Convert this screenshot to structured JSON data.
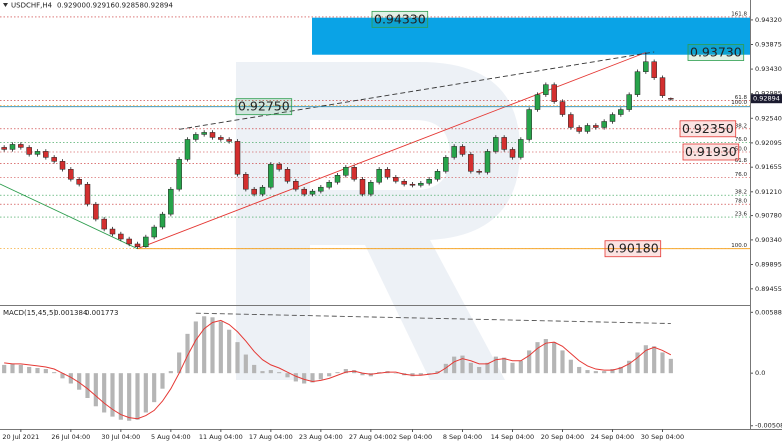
{
  "chart_data": [
    {
      "type": "candlestick",
      "symbol": "USDCHF,H4",
      "header_values": [
        "0.92900",
        "0.92916",
        "0.92858",
        "0.92894"
      ],
      "up_color": "#27a34a",
      "down_color": "#d32f2f",
      "xlim": [
        -0.5,
        89.5
      ],
      "ylim": [
        0.8918,
        0.9468
      ],
      "yticks": [
        {
          "value": 0.9432,
          "label": "0.94320"
        },
        0.93875,
        {
          "value": 0.9343,
          "label": "0.93430"
        },
        0.92985,
        {
          "value": 0.9254,
          "label": "0.92540"
        },
        0.92095,
        0.91655,
        {
          "value": 0.9121,
          "label": "0.91210"
        },
        {
          "value": 0.9078,
          "label": "0.90780"
        },
        {
          "value": 0.9034,
          "label": "0.90340"
        },
        0.89895,
        0.89455
      ],
      "ohlc": [
        [
          0.92013,
          0.92053,
          0.91937,
          0.91977
        ],
        [
          0.91977,
          0.92107,
          0.91937,
          0.92067
        ],
        [
          0.92067,
          0.92107,
          0.91973,
          0.92013
        ],
        [
          0.92013,
          0.92053,
          0.91847,
          0.91887
        ],
        [
          0.91887,
          0.91981,
          0.91847,
          0.91941
        ],
        [
          0.91941,
          0.91981,
          0.91793,
          0.91833
        ],
        [
          0.91833,
          0.91873,
          0.91721,
          0.91761
        ],
        [
          0.91761,
          0.91801,
          0.91577,
          0.91617
        ],
        [
          0.91617,
          0.91657,
          0.91397,
          0.91437
        ],
        [
          0.91437,
          0.91477,
          0.91307,
          0.91347
        ],
        [
          0.91347,
          0.91387,
          0.90946,
          0.90986
        ],
        [
          0.90986,
          0.91026,
          0.90676,
          0.90716
        ],
        [
          0.90716,
          0.90756,
          0.90496,
          0.90536
        ],
        [
          0.90536,
          0.90576,
          0.90406,
          0.90446
        ],
        [
          0.90446,
          0.90486,
          0.90316,
          0.90356
        ],
        [
          0.90356,
          0.90396,
          0.90226,
          0.90266
        ],
        [
          0.90266,
          0.90306,
          0.9018,
          0.90216
        ],
        [
          0.90216,
          0.90432,
          0.90196,
          0.90392
        ],
        [
          0.90392,
          0.90612,
          0.90352,
          0.90572
        ],
        [
          0.90572,
          0.90846,
          0.90532,
          0.90806
        ],
        [
          0.90806,
          0.91297,
          0.90766,
          0.91257
        ],
        [
          0.91257,
          0.91837,
          0.91217,
          0.91797
        ],
        [
          0.91797,
          0.92197,
          0.91757,
          0.92157
        ],
        [
          0.92157,
          0.92288,
          0.92117,
          0.92248
        ],
        [
          0.92248,
          0.92324,
          0.92208,
          0.92284
        ],
        [
          0.92284,
          0.92324,
          0.92154,
          0.92194
        ],
        [
          0.92194,
          0.92234,
          0.92117,
          0.92157
        ],
        [
          0.92157,
          0.92197,
          0.92082,
          0.92122
        ],
        [
          0.92122,
          0.92162,
          0.91487,
          0.91527
        ],
        [
          0.91527,
          0.91567,
          0.91217,
          0.91257
        ],
        [
          0.91257,
          0.91297,
          0.91127,
          0.91167
        ],
        [
          0.91167,
          0.91333,
          0.91127,
          0.91293
        ],
        [
          0.91293,
          0.91747,
          0.91253,
          0.91707
        ],
        [
          0.91707,
          0.91747,
          0.91577,
          0.91617
        ],
        [
          0.91617,
          0.91657,
          0.91361,
          0.91401
        ],
        [
          0.91401,
          0.91441,
          0.91217,
          0.91257
        ],
        [
          0.91257,
          0.91297,
          0.91127,
          0.91167
        ],
        [
          0.91167,
          0.91261,
          0.91127,
          0.91221
        ],
        [
          0.91221,
          0.91333,
          0.91181,
          0.91293
        ],
        [
          0.91293,
          0.91423,
          0.91253,
          0.91383
        ],
        [
          0.91383,
          0.91549,
          0.91343,
          0.91509
        ],
        [
          0.91509,
          0.91693,
          0.91469,
          0.91653
        ],
        [
          0.91653,
          0.91693,
          0.91397,
          0.91437
        ],
        [
          0.91437,
          0.91477,
          0.91127,
          0.91167
        ],
        [
          0.91167,
          0.91423,
          0.91127,
          0.91383
        ],
        [
          0.91383,
          0.91657,
          0.91343,
          0.91617
        ],
        [
          0.91617,
          0.91657,
          0.91433,
          0.91473
        ],
        [
          0.91473,
          0.91513,
          0.91361,
          0.91401
        ],
        [
          0.91401,
          0.91441,
          0.91307,
          0.91347
        ],
        [
          0.91347,
          0.91387,
          0.91289,
          0.91329
        ],
        [
          0.91329,
          0.91405,
          0.91289,
          0.91365
        ],
        [
          0.91365,
          0.91477,
          0.91325,
          0.91437
        ],
        [
          0.91437,
          0.91621,
          0.91397,
          0.91581
        ],
        [
          0.91581,
          0.91873,
          0.91541,
          0.91833
        ],
        [
          0.91833,
          0.92071,
          0.91793,
          0.92031
        ],
        [
          0.92031,
          0.92071,
          0.91847,
          0.91887
        ],
        [
          0.91887,
          0.91927,
          0.91541,
          0.91581
        ],
        [
          0.91581,
          0.91621,
          0.91523,
          0.91563
        ],
        [
          0.91563,
          0.91981,
          0.91523,
          0.91941
        ],
        [
          0.91941,
          0.92234,
          0.91901,
          0.92194
        ],
        [
          0.92194,
          0.92234,
          0.91937,
          0.91977
        ],
        [
          0.91977,
          0.92017,
          0.91793,
          0.91833
        ],
        [
          0.91833,
          0.92197,
          0.91793,
          0.92157
        ],
        [
          0.92157,
          0.92738,
          0.92117,
          0.92698
        ],
        [
          0.92698,
          0.93008,
          0.92658,
          0.92968
        ],
        [
          0.92968,
          0.93188,
          0.92928,
          0.93148
        ],
        [
          0.93148,
          0.93188,
          0.92802,
          0.92842
        ],
        [
          0.92842,
          0.92882,
          0.92568,
          0.92608
        ],
        [
          0.92608,
          0.92648,
          0.92334,
          0.92374
        ],
        [
          0.92374,
          0.92414,
          0.92262,
          0.92302
        ],
        [
          0.92302,
          0.9245,
          0.92262,
          0.9241
        ],
        [
          0.9241,
          0.9245,
          0.92334,
          0.92374
        ],
        [
          0.92374,
          0.92522,
          0.92334,
          0.92482
        ],
        [
          0.92482,
          0.92648,
          0.92442,
          0.92608
        ],
        [
          0.92608,
          0.92738,
          0.92568,
          0.92698
        ],
        [
          0.92698,
          0.93008,
          0.92658,
          0.92968
        ],
        [
          0.92968,
          0.93423,
          0.92928,
          0.93383
        ],
        [
          0.93383,
          0.9373,
          0.93343,
          0.93563
        ],
        [
          0.93563,
          0.93603,
          0.93235,
          0.93275
        ],
        [
          0.93275,
          0.93315,
          0.9291,
          0.9295
        ],
        [
          0.929,
          0.92916,
          0.92858,
          0.92894
        ]
      ],
      "zone": {
        "from": 0.9369,
        "to": 0.9436,
        "color": "#0aa3e6"
      },
      "levels": [
        {
          "label": "161.8",
          "value": 0.94374,
          "color": "#c62828"
        },
        {
          "label": "61.8",
          "value": 0.9286,
          "color": "#c62828"
        },
        {
          "label": "100.0",
          "value": 0.9277,
          "color": "#f39c12"
        },
        {
          "label": "38.2",
          "value": 0.9235,
          "color": "#c62828"
        },
        {
          "label": "76.0",
          "value": 0.92103,
          "color": "#2e9e4f"
        },
        {
          "label": "50.0",
          "value": 0.9193,
          "color": "#c62828"
        },
        {
          "label": "61.8",
          "value": 0.91725,
          "color": "#c62828"
        },
        {
          "label": "76.0",
          "value": 0.91473,
          "color": "#c62828"
        },
        {
          "label": "38.2",
          "value": 0.91149,
          "color": "#2e9e4f"
        },
        {
          "label": "78.0",
          "value": 0.90986,
          "color": "#c62828"
        },
        {
          "label": "23.6",
          "value": 0.90752,
          "color": "#2e9e4f"
        },
        {
          "label": "100.0",
          "value": 0.9018,
          "color": "#f39c12"
        }
      ],
      "trendlines": [
        {
          "from": [
            16,
            0.9018
          ],
          "to": [
            77,
            0.9373
          ],
          "color": "#e53935",
          "dash": false
        },
        {
          "from": [
            21,
            0.9234
          ],
          "to": [
            78,
            0.9374
          ],
          "color": "#333333",
          "dash": true
        },
        {
          "from": [
            -0.5,
            0.9135
          ],
          "to": [
            16,
            0.9018
          ],
          "color": "#2e9e4f",
          "dash": false
        },
        {
          "from": [
            16,
            0.9018
          ],
          "to": [
            89.5,
            0.9018
          ],
          "color": "#f39c12",
          "dash": false
        },
        {
          "from": [
            -0.5,
            0.9275
          ],
          "to": [
            89.5,
            0.9275
          ],
          "color": "#2a8ab0",
          "dash": false
        }
      ],
      "annotations": [
        {
          "text": "0.94330",
          "value": 0.9433,
          "color": "#2e9e4f"
        },
        {
          "text": "0.93730",
          "value": 0.9373,
          "color": "#2e9e4f"
        },
        {
          "text": "0.92750",
          "value": 0.9275,
          "color": "#2e9e4f"
        },
        {
          "text": "0.92350",
          "value": 0.9235,
          "color": "#e53935"
        },
        {
          "text": "0.91930",
          "value": 0.9193,
          "color": "#e53935"
        },
        {
          "text": "0.90180",
          "value": 0.9018,
          "color": "#e53935"
        }
      ]
    },
    {
      "type": "macd",
      "title": "MACD(15,45,5)",
      "hist_color": "#b5b5b5",
      "signal_color": "#e53935",
      "xlim": [
        -0.5,
        89.5
      ],
      "ylim": [
        -0.0053,
        0.0063
      ],
      "yticks": [
        0.005882,
        {
          "value": 0,
          "label": "0.0"
        },
        -0.005081
      ],
      "xticks": [
        {
          "value": 2,
          "label": "20 Jul 2021"
        },
        {
          "value": 8,
          "label": "26 Jul 04:00"
        },
        {
          "value": 14,
          "label": "30 Jul 04:00"
        },
        {
          "value": 20,
          "label": "5 Aug 04:00"
        },
        {
          "value": 26,
          "label": "11 Aug 04:00"
        },
        {
          "value": 32,
          "label": "17 Aug 04:00"
        },
        {
          "value": 38,
          "label": "23 Aug 04:00"
        },
        {
          "value": 44,
          "label": "27 Aug 04:00"
        },
        {
          "value": 49,
          "label": "2 Sep 04:00"
        },
        {
          "value": 55,
          "label": "8 Sep 04:00"
        },
        {
          "value": 61,
          "label": "14 Sep 04:00"
        },
        {
          "value": 67,
          "label": "20 Sep 04:00"
        },
        {
          "value": 73,
          "label": "24 Sep 04:00"
        },
        {
          "value": 79,
          "label": "30 Sep 04:00"
        }
      ],
      "histogram": [
        0.0008,
        0.0009,
        0.0008,
        0.0006,
        0.0005,
        0.0004,
        0.0001,
        -0.0005,
        -0.001,
        -0.0016,
        -0.0024,
        -0.0032,
        -0.0038,
        -0.0042,
        -0.0045,
        -0.0046,
        -0.0045,
        -0.0038,
        -0.0028,
        -0.0015,
        0.0002,
        0.002,
        0.0038,
        0.005,
        0.0055,
        0.0054,
        0.005,
        0.0042,
        0.003,
        0.0018,
        0.0008,
        0.0002,
        0.0003,
        0.0001,
        -0.0004,
        -0.0008,
        -0.001,
        -0.0009,
        -0.0006,
        -0.0003,
        0.0001,
        0.0004,
        0.0003,
        -0.0002,
        -0.0003,
        0.0001,
        0.0002,
        0,
        -0.0002,
        -0.0003,
        -0.0002,
        -0.0001,
        0.0002,
        0.0009,
        0.0016,
        0.0017,
        0.001,
        0.0006,
        0.001,
        0.0016,
        0.0015,
        0.001,
        0.0012,
        0.0022,
        0.003,
        0.0033,
        0.003,
        0.0022,
        0.0013,
        0.0006,
        0.0003,
        0.0002,
        0.0002,
        0.0004,
        0.0006,
        0.0012,
        0.002,
        0.0027,
        0.0026,
        0.002,
        0.001384
      ],
      "signal": [
        0.001,
        0.0009,
        0.0009,
        0.0008,
        0.0007,
        0.0006,
        0.0004,
        0,
        -0.0004,
        -0.0009,
        -0.0015,
        -0.0022,
        -0.0029,
        -0.0035,
        -0.004,
        -0.0043,
        -0.0044,
        -0.0041,
        -0.0036,
        -0.0027,
        -0.0015,
        0,
        0.0017,
        0.0032,
        0.0043,
        0.0049,
        0.0051,
        0.0047,
        0.004,
        0.0031,
        0.0021,
        0.0013,
        0.0008,
        0.0005,
        0.0001,
        -0.0003,
        -0.0006,
        -0.0008,
        -0.0007,
        -0.0005,
        -0.0002,
        0.0001,
        0.0002,
        0,
        -0.0001,
        0,
        0.0001,
        0.0001,
        -0.0001,
        -0.0002,
        -0.0002,
        -0.0001,
        0,
        0.0005,
        0.0011,
        0.0014,
        0.0012,
        0.0009,
        0.0009,
        0.0013,
        0.0014,
        0.0012,
        0.0012,
        0.0017,
        0.0024,
        0.0029,
        0.003,
        0.0026,
        0.0019,
        0.0012,
        0.0007,
        0.0004,
        0.0003,
        0.0003,
        0.0005,
        0.0009,
        0.0015,
        0.0022,
        0.0025,
        0.0022,
        0.001773
      ],
      "trendlines": [
        {
          "from": [
            23,
            0.0058
          ],
          "to": [
            80,
            0.0048
          ],
          "color": "#555555",
          "dash": true
        }
      ]
    }
  ]
}
